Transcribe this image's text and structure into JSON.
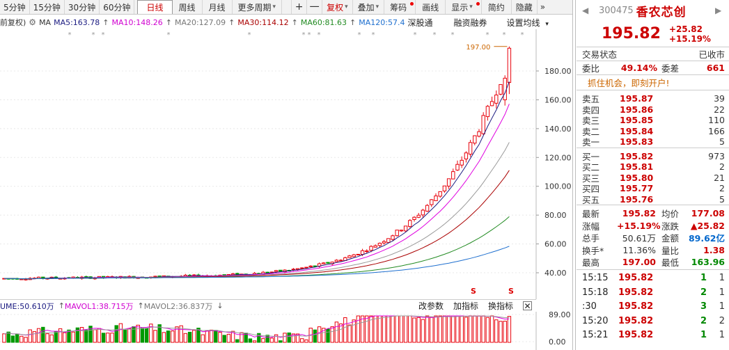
{
  "toolbar": {
    "periods": [
      "5分钟",
      "15分钟",
      "30分钟",
      "60分钟",
      "日线",
      "周线",
      "月线",
      "更多周期"
    ],
    "active_period": "日线",
    "zoom_in": "+",
    "zoom_out": "一",
    "fuquan": "复权",
    "overlay": "叠加",
    "chips": "筹码",
    "draw": "画线",
    "display": "显示",
    "simple": "简约",
    "hide": "隐藏",
    "more": "»"
  },
  "legend": {
    "fq": "前复权)",
    "ma_label": "MA",
    "ma5": "MA5:163.78",
    "ma10": "MA10:148.26",
    "ma20": "MA20:127.09",
    "ma30": "MA30:114.12",
    "ma60": "MA60:81.63",
    "ma120": "MA120:57.4",
    "btn1": "深股通",
    "btn2": "融资融券",
    "btn3": "设置均线"
  },
  "chart": {
    "high_label": "197.00",
    "y_ticks": [
      "180.00",
      "160.00",
      "140.00",
      "120.00",
      "100.00",
      "80.00",
      "60.00",
      "40.00"
    ],
    "colors": {
      "up": "#e8000a",
      "down": "#009900",
      "ma5": "#1a1a80",
      "ma10": "#e000e0",
      "ma20": "#999999",
      "ma30": "#aa0000",
      "ma60": "#228b22",
      "ma120": "#1e6fcf"
    }
  },
  "volume": {
    "vol": "UME:50.610万",
    "mavol1": "MAVOL1:38.715万",
    "mavol2": "MAVOL2:36.837万",
    "params": "改参数",
    "add_ind": "加指标",
    "switch_ind": "换指标",
    "close": "✕",
    "y_ticks": [
      "89.00",
      "0.00"
    ]
  },
  "quote": {
    "code": "300475",
    "name": "香农芯创",
    "price": "195.82",
    "change": "+25.82",
    "change_pct": "+15.19%",
    "status_label": "交易状态",
    "status_value": "已收市",
    "webi_label": "委比",
    "webi_value": "49.14%",
    "weicha_label": "委差",
    "weicha_value": "661",
    "promo": "抓住机会，即刻开户!",
    "asks": [
      {
        "label": "卖五",
        "price": "195.87",
        "vol": "39"
      },
      {
        "label": "卖四",
        "price": "195.86",
        "vol": "22"
      },
      {
        "label": "卖三",
        "price": "195.85",
        "vol": "110"
      },
      {
        "label": "卖二",
        "price": "195.84",
        "vol": "166"
      },
      {
        "label": "卖一",
        "price": "195.83",
        "vol": "5"
      }
    ],
    "bids": [
      {
        "label": "买一",
        "price": "195.82",
        "vol": "973"
      },
      {
        "label": "买二",
        "price": "195.81",
        "vol": "2"
      },
      {
        "label": "买三",
        "price": "195.80",
        "vol": "21"
      },
      {
        "label": "买四",
        "price": "195.77",
        "vol": "2"
      },
      {
        "label": "买五",
        "price": "195.76",
        "vol": "5"
      }
    ],
    "stats": [
      {
        "k1": "最新",
        "v1": "195.82",
        "c1": "pr",
        "k2": "均价",
        "v2": "177.08",
        "c2": "pr"
      },
      {
        "k1": "涨幅",
        "v1": "+15.19%",
        "c1": "pr",
        "k2": "涨跌",
        "v2": "▲25.82",
        "c2": "pr"
      },
      {
        "k1": "总手",
        "v1": "50.61万",
        "c1": "",
        "k2": "金额",
        "v2": "89.62亿",
        "c2": "bl"
      },
      {
        "k1": "换手*",
        "v1": "11.36%",
        "c1": "",
        "k2": "量比",
        "v2": "1.38",
        "c2": "pr"
      },
      {
        "k1": "最高",
        "v1": "197.00",
        "c1": "pr",
        "k2": "最低",
        "v2": "163.96",
        "c2": "gr"
      }
    ],
    "ticks": [
      {
        "time": "15:15",
        "price": "195.82",
        "vol": "1",
        "vc": "gr",
        "n": "1"
      },
      {
        "time": "15:18",
        "price": "195.82",
        "vol": "2",
        "vc": "gr",
        "n": "1"
      },
      {
        "time": ":30",
        "price": "195.82",
        "vol": "3",
        "vc": "gr",
        "n": "1"
      },
      {
        "time": "15:20",
        "price": "195.82",
        "vol": "2",
        "vc": "gr",
        "n": "2"
      },
      {
        "time": "15:21",
        "price": "195.82",
        "vol": "1",
        "vc": "gr",
        "n": "1"
      }
    ]
  }
}
